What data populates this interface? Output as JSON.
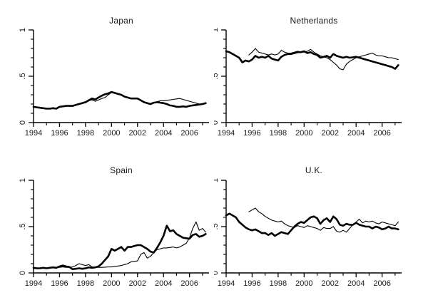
{
  "figure": {
    "background": "#ffffff",
    "line_color": "#000000",
    "text_color": "#1a1a1a"
  },
  "chart_data": [
    {
      "type": "line",
      "title": "Japan",
      "xlabel": "",
      "ylabel": "",
      "xlim": [
        1994,
        2007.5
      ],
      "ylim": [
        0,
        1
      ],
      "grid": false,
      "legend": "none",
      "x_major_ticks": [
        1994,
        1996,
        1998,
        2000,
        2002,
        2004,
        2006
      ],
      "x_minor_ticks": [
        1995,
        1997,
        1999,
        2001,
        2003,
        2005,
        2007
      ],
      "y_major_ticks": [
        {
          "value": 0,
          "label": "0"
        },
        {
          "value": 0.5,
          "label": ".5"
        },
        {
          "value": 1,
          "label": "1"
        }
      ],
      "y_minor_ticks": [
        0.1,
        0.2,
        0.3,
        0.4,
        0.6,
        0.7,
        0.8,
        0.9
      ],
      "series": [
        {
          "name": "thick",
          "x0": 1994,
          "dx": 0.25,
          "values": [
            0.17,
            0.165,
            0.16,
            0.155,
            0.15,
            0.15,
            0.155,
            0.15,
            0.17,
            0.175,
            0.18,
            0.18,
            0.18,
            0.19,
            0.2,
            0.21,
            0.22,
            0.24,
            0.26,
            0.25,
            0.27,
            0.29,
            0.305,
            0.315,
            0.33,
            0.32,
            0.31,
            0.3,
            0.28,
            0.27,
            0.26,
            0.26,
            0.26,
            0.24,
            0.22,
            0.21,
            0.2,
            0.215,
            0.22,
            0.215,
            0.21,
            0.2,
            0.185,
            0.18,
            0.17,
            0.17,
            0.175,
            0.17,
            0.18,
            0.185,
            0.19,
            0.195,
            0.2,
            0.21
          ]
        },
        {
          "name": "thin",
          "x0": 1994,
          "dx": 0.25,
          "values": [
            0.165,
            0.16,
            0.155,
            0.15,
            0.148,
            0.148,
            0.152,
            0.15,
            0.168,
            0.172,
            0.178,
            0.178,
            0.178,
            0.188,
            0.198,
            0.208,
            0.215,
            0.235,
            0.245,
            0.23,
            0.245,
            0.26,
            0.27,
            0.3,
            0.325,
            0.315,
            0.305,
            0.295,
            0.28,
            0.27,
            0.26,
            0.255,
            0.255,
            0.235,
            0.215,
            0.21,
            0.2,
            0.21,
            0.225,
            0.235,
            0.235,
            0.24,
            0.245,
            0.25,
            0.255,
            0.26,
            0.25,
            0.24,
            0.23,
            0.22,
            0.21,
            0.2,
            0.2,
            0.205
          ]
        }
      ]
    },
    {
      "type": "line",
      "title": "Netherlands",
      "xlabel": "",
      "ylabel": "",
      "xlim": [
        1994,
        2007.5
      ],
      "ylim": [
        0,
        1
      ],
      "grid": false,
      "legend": "none",
      "x_major_ticks": [
        1994,
        1996,
        1998,
        2000,
        2002,
        2004,
        2006
      ],
      "x_minor_ticks": [
        1995,
        1997,
        1999,
        2001,
        2003,
        2005,
        2007
      ],
      "y_major_ticks": [
        {
          "value": 0,
          "label": "0"
        },
        {
          "value": 0.5,
          "label": ".5"
        },
        {
          "value": 1,
          "label": "1"
        }
      ],
      "y_minor_ticks": [
        0.1,
        0.2,
        0.3,
        0.4,
        0.6,
        0.7,
        0.8,
        0.9
      ],
      "series": [
        {
          "name": "thick",
          "x0": 1994,
          "dx": 0.25,
          "values": [
            0.77,
            0.76,
            0.74,
            0.72,
            0.7,
            0.65,
            0.67,
            0.66,
            0.68,
            0.72,
            0.7,
            0.71,
            0.7,
            0.72,
            0.69,
            0.68,
            0.67,
            0.71,
            0.73,
            0.74,
            0.74,
            0.75,
            0.76,
            0.76,
            0.77,
            0.75,
            0.76,
            0.74,
            0.73,
            0.7,
            0.71,
            0.72,
            0.7,
            0.74,
            0.72,
            0.71,
            0.7,
            0.71,
            0.7,
            0.705,
            0.71,
            0.7,
            0.69,
            0.68,
            0.67,
            0.66,
            0.65,
            0.64,
            0.63,
            0.62,
            0.61,
            0.6,
            0.58,
            0.62
          ]
        },
        {
          "name": "thin",
          "x0": 1995.75,
          "dx": 0.25,
          "values": [
            0.73,
            0.76,
            0.8,
            0.76,
            0.75,
            0.74,
            0.73,
            0.74,
            0.73,
            0.74,
            0.78,
            0.76,
            0.75,
            0.75,
            0.76,
            0.77,
            0.76,
            0.76,
            0.77,
            0.79,
            0.76,
            0.74,
            0.72,
            0.71,
            0.7,
            0.68,
            0.65,
            0.62,
            0.58,
            0.57,
            0.63,
            0.66,
            0.68,
            0.7,
            0.71,
            0.72,
            0.73,
            0.74,
            0.75,
            0.73,
            0.72,
            0.72,
            0.71,
            0.7,
            0.7,
            0.69,
            0.68
          ]
        }
      ]
    },
    {
      "type": "line",
      "title": "Spain",
      "xlabel": "",
      "ylabel": "",
      "xlim": [
        1994,
        2007.5
      ],
      "ylim": [
        0,
        1
      ],
      "grid": false,
      "legend": "none",
      "x_major_ticks": [
        1994,
        1996,
        1998,
        2000,
        2002,
        2004,
        2006
      ],
      "x_minor_ticks": [
        1995,
        1997,
        1999,
        2001,
        2003,
        2005,
        2007
      ],
      "y_major_ticks": [
        {
          "value": 0,
          "label": "0"
        },
        {
          "value": 0.5,
          "label": ".5"
        },
        {
          "value": 1,
          "label": "1"
        }
      ],
      "y_minor_ticks": [
        0.1,
        0.2,
        0.3,
        0.4,
        0.6,
        0.7,
        0.8,
        0.9
      ],
      "series": [
        {
          "name": "thick",
          "x0": 1994,
          "dx": 0.25,
          "values": [
            0.055,
            0.05,
            0.05,
            0.055,
            0.05,
            0.055,
            0.06,
            0.055,
            0.07,
            0.08,
            0.07,
            0.065,
            0.04,
            0.045,
            0.05,
            0.045,
            0.05,
            0.06,
            0.055,
            0.06,
            0.07,
            0.1,
            0.14,
            0.18,
            0.26,
            0.24,
            0.26,
            0.28,
            0.24,
            0.28,
            0.28,
            0.29,
            0.3,
            0.3,
            0.28,
            0.26,
            0.23,
            0.22,
            0.27,
            0.33,
            0.4,
            0.51,
            0.45,
            0.46,
            0.42,
            0.4,
            0.38,
            0.375,
            0.37,
            0.41,
            0.42,
            0.39,
            0.4,
            0.42
          ]
        },
        {
          "name": "thin",
          "x0": 1994,
          "dx": 0.25,
          "values": [
            0.05,
            0.048,
            0.05,
            0.052,
            0.05,
            0.052,
            0.055,
            0.058,
            0.06,
            0.065,
            0.06,
            0.06,
            0.065,
            0.08,
            0.1,
            0.09,
            0.08,
            0.09,
            0.065,
            0.06,
            0.06,
            0.06,
            0.062,
            0.065,
            0.065,
            0.07,
            0.075,
            0.08,
            0.09,
            0.1,
            0.12,
            0.125,
            0.13,
            0.2,
            0.22,
            0.16,
            0.18,
            0.22,
            0.25,
            0.26,
            0.27,
            0.27,
            0.275,
            0.28,
            0.27,
            0.28,
            0.3,
            0.32,
            0.38,
            0.48,
            0.55,
            0.46,
            0.48,
            0.44
          ]
        }
      ]
    },
    {
      "type": "line",
      "title": "U.K.",
      "xlabel": "",
      "ylabel": "",
      "xlim": [
        1994,
        2007.5
      ],
      "ylim": [
        0,
        1
      ],
      "grid": false,
      "legend": "none",
      "x_major_ticks": [
        1994,
        1996,
        1998,
        2000,
        2002,
        2004,
        2006
      ],
      "x_minor_ticks": [
        1995,
        1997,
        1999,
        2001,
        2003,
        2005,
        2007
      ],
      "y_major_ticks": [
        {
          "value": 0,
          "label": "0"
        },
        {
          "value": 0.5,
          "label": ".5"
        },
        {
          "value": 1,
          "label": "1"
        }
      ],
      "y_minor_ticks": [
        0.1,
        0.2,
        0.3,
        0.4,
        0.6,
        0.7,
        0.8,
        0.9
      ],
      "series": [
        {
          "name": "thick",
          "x0": 1994,
          "dx": 0.25,
          "values": [
            0.62,
            0.64,
            0.62,
            0.6,
            0.55,
            0.52,
            0.49,
            0.47,
            0.46,
            0.47,
            0.45,
            0.43,
            0.43,
            0.41,
            0.43,
            0.4,
            0.42,
            0.44,
            0.43,
            0.42,
            0.46,
            0.5,
            0.53,
            0.55,
            0.54,
            0.57,
            0.6,
            0.61,
            0.59,
            0.53,
            0.57,
            0.59,
            0.55,
            0.61,
            0.58,
            0.52,
            0.51,
            0.53,
            0.52,
            0.52,
            0.54,
            0.52,
            0.51,
            0.5,
            0.5,
            0.48,
            0.5,
            0.49,
            0.47,
            0.48,
            0.5,
            0.48,
            0.48,
            0.47
          ]
        },
        {
          "name": "thin",
          "x0": 1995.75,
          "dx": 0.25,
          "values": [
            0.66,
            0.68,
            0.7,
            0.66,
            0.64,
            0.61,
            0.59,
            0.57,
            0.56,
            0.55,
            0.56,
            0.53,
            0.51,
            0.5,
            0.49,
            0.51,
            0.5,
            0.49,
            0.51,
            0.5,
            0.49,
            0.48,
            0.46,
            0.49,
            0.48,
            0.48,
            0.5,
            0.45,
            0.44,
            0.46,
            0.44,
            0.48,
            0.52,
            0.55,
            0.58,
            0.54,
            0.56,
            0.55,
            0.56,
            0.54,
            0.53,
            0.55,
            0.54,
            0.53,
            0.52,
            0.51,
            0.55
          ]
        }
      ]
    }
  ]
}
